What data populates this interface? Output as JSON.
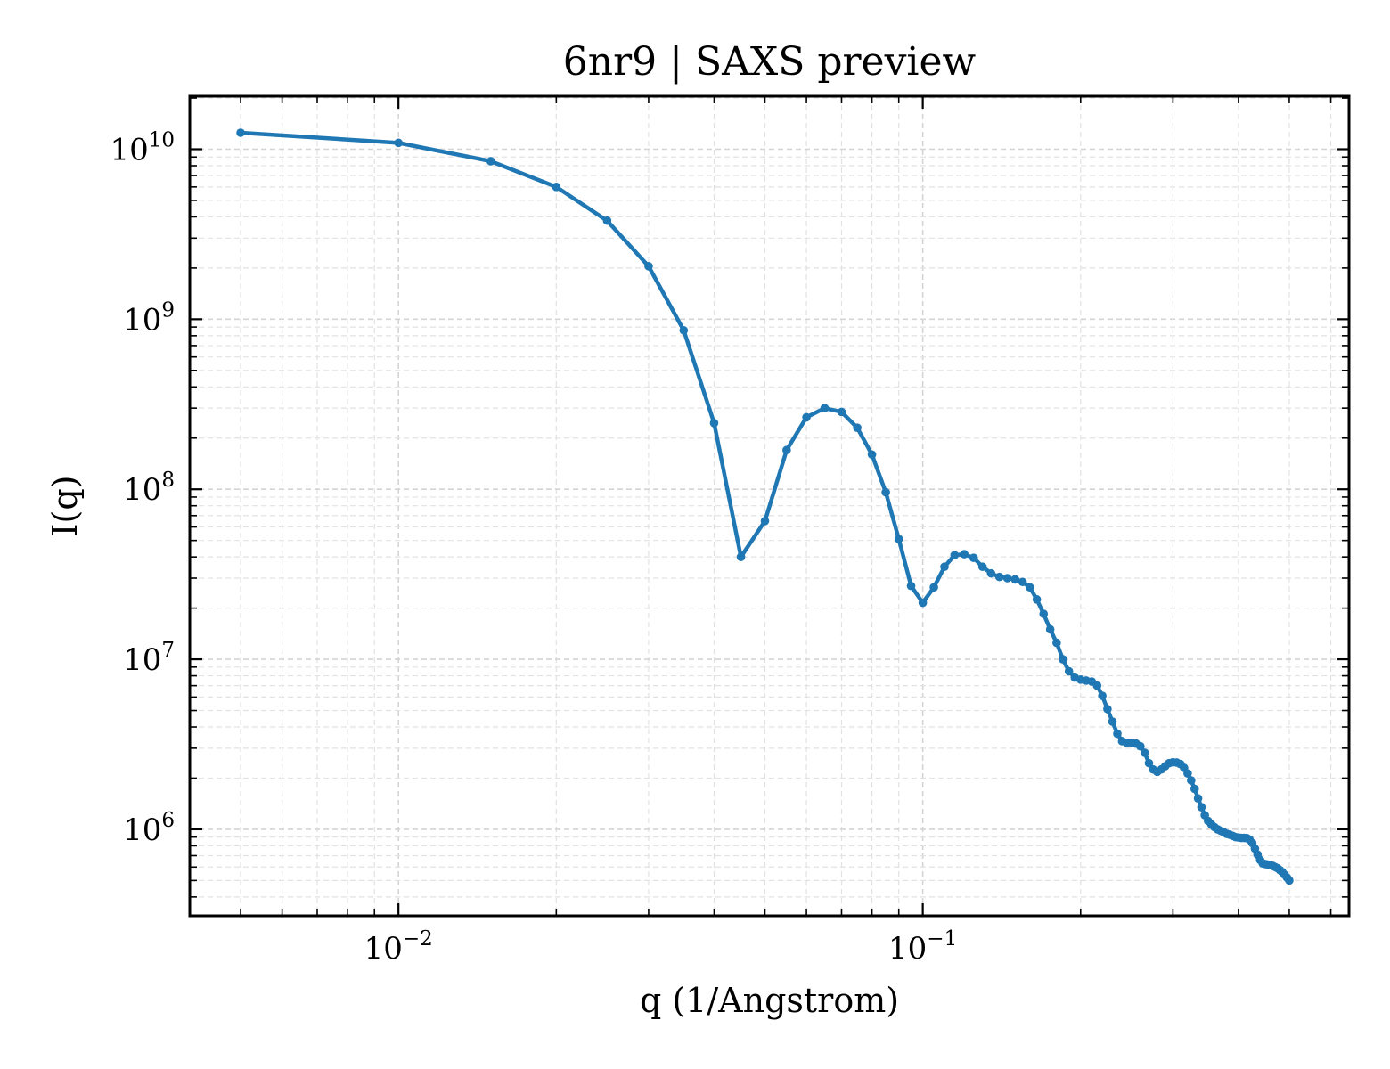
{
  "chart_data": {
    "type": "line",
    "title": "6nr9 | SAXS preview",
    "xlabel": "q (1/Angstrom)",
    "ylabel": "I(q)",
    "xscale": "log",
    "yscale": "log",
    "xlim": [
      0.004,
      0.65
    ],
    "ylim": [
      310000,
      20500000000
    ],
    "grid": true,
    "legend": "none",
    "x_ticks": [
      {
        "value": 0.01,
        "base": "10",
        "exp": "−2"
      },
      {
        "value": 0.1,
        "base": "10",
        "exp": "−1"
      }
    ],
    "y_ticks": [
      {
        "value": 1000000,
        "base": "10",
        "exp": "6"
      },
      {
        "value": 10000000,
        "base": "10",
        "exp": "7"
      },
      {
        "value": 100000000,
        "base": "10",
        "exp": "8"
      },
      {
        "value": 1000000000,
        "base": "10",
        "exp": "9"
      },
      {
        "value": 10000000000,
        "base": "10",
        "exp": "10"
      }
    ],
    "series": [
      {
        "color": "#1f77b4",
        "x": [
          0.005,
          0.01,
          0.015,
          0.02,
          0.025,
          0.03,
          0.035,
          0.04,
          0.045,
          0.05,
          0.055,
          0.06,
          0.065,
          0.07,
          0.075,
          0.08,
          0.085,
          0.09,
          0.095,
          0.1,
          0.105,
          0.11,
          0.115,
          0.12,
          0.125,
          0.13,
          0.135,
          0.14,
          0.145,
          0.15,
          0.155,
          0.16,
          0.165,
          0.17,
          0.175,
          0.18,
          0.185,
          0.19,
          0.195,
          0.2,
          0.205,
          0.21,
          0.215,
          0.22,
          0.225,
          0.23,
          0.235,
          0.24,
          0.245,
          0.25,
          0.255,
          0.26,
          0.265,
          0.27,
          0.275,
          0.28,
          0.285,
          0.29,
          0.295,
          0.3,
          0.305,
          0.31,
          0.315,
          0.32,
          0.325,
          0.33,
          0.335,
          0.34,
          0.345,
          0.35,
          0.355,
          0.36,
          0.365,
          0.37,
          0.375,
          0.38,
          0.385,
          0.39,
          0.395,
          0.4,
          0.405,
          0.41,
          0.415,
          0.42,
          0.425,
          0.43,
          0.435,
          0.44,
          0.445,
          0.45,
          0.455,
          0.46,
          0.465,
          0.47,
          0.475,
          0.48,
          0.485,
          0.49,
          0.495,
          0.5
        ],
        "y": [
          12500000000,
          10900000000,
          8500000000,
          6000000000,
          3800000000,
          2050000000,
          860000000,
          245000000,
          40000000,
          65000000,
          170000000,
          265000000,
          300000000,
          285000000,
          230000000,
          160000000,
          96000000,
          51000000,
          27000000,
          21500000,
          26500000,
          35000000,
          41000000,
          41500000,
          39500000,
          35000000,
          32000000,
          30500000,
          30000000,
          29500000,
          28500000,
          26500000,
          22500000,
          18500000,
          15000000,
          12500000,
          10000000,
          8500000,
          7800000,
          7600000,
          7500000,
          7400000,
          7000000,
          6100000,
          5100000,
          4300000,
          3650000,
          3300000,
          3230000,
          3230000,
          3200000,
          3080000,
          2820000,
          2450000,
          2250000,
          2180000,
          2250000,
          2350000,
          2450000,
          2480000,
          2470000,
          2420000,
          2300000,
          2130000,
          1940000,
          1730000,
          1520000,
          1350000,
          1210000,
          1120000,
          1070000,
          1030000,
          1000000,
          980000,
          960000,
          940000,
          930000,
          915000,
          900000,
          895000,
          890000,
          890000,
          888000,
          870000,
          830000,
          770000,
          710000,
          660000,
          630000,
          625000,
          620000,
          615000,
          610000,
          600000,
          590000,
          575000,
          560000,
          540000,
          520000,
          500000
        ]
      }
    ]
  }
}
